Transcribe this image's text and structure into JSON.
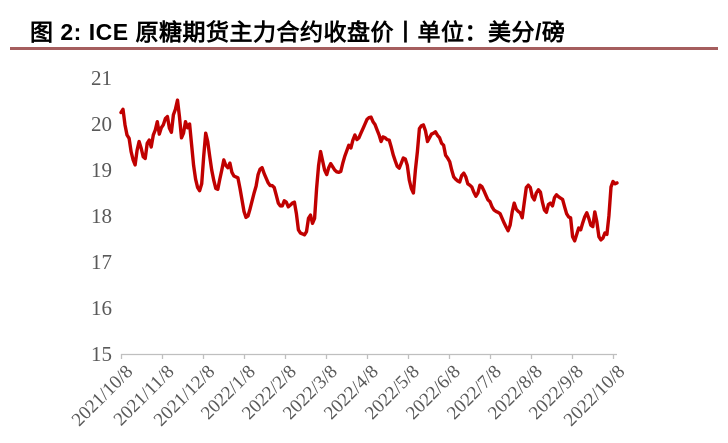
{
  "figure": {
    "caption": "图 2: ICE 原糖期货主力合约收盘价丨单位：美分/磅",
    "underline_color": "#A55E5E"
  },
  "chart_data": {
    "type": "line",
    "title": "ICE 原糖期货主力合约收盘价",
    "unit": "美分/磅",
    "xlabel": "",
    "ylabel": "",
    "ylim": [
      15,
      21
    ],
    "y_ticks": [
      15,
      16,
      17,
      18,
      19,
      20,
      21
    ],
    "x_tick_labels": [
      "2021/10/8",
      "2021/11/8",
      "2021/12/8",
      "2022/1/8",
      "2022/2/8",
      "2022/3/8",
      "2022/4/8",
      "2022/5/8",
      "2022/6/8",
      "2022/7/8",
      "2022/8/8",
      "2022/9/8",
      "2022/10/8"
    ],
    "grid": false,
    "legend_position": "none",
    "axis_color": "#BFBFBF",
    "label_color": "#595959",
    "series": [
      {
        "name": "ICE原糖期货主力合约收盘价",
        "color": "#C00000",
        "values": [
          20.25,
          20.32,
          19.98,
          19.76,
          19.69,
          19.4,
          19.22,
          19.11,
          19.43,
          19.62,
          19.47,
          19.29,
          19.25,
          19.58,
          19.65,
          19.5,
          19.76,
          19.87,
          20.05,
          19.78,
          19.92,
          19.98,
          20.12,
          20.16,
          19.91,
          19.82,
          20.2,
          20.32,
          20.52,
          20.15,
          19.7,
          19.8,
          20.05,
          19.92,
          20.0,
          19.55,
          19.1,
          18.8,
          18.62,
          18.55,
          18.7,
          19.3,
          19.8,
          19.62,
          19.3,
          19.0,
          18.78,
          18.6,
          18.58,
          18.8,
          19.0,
          19.22,
          19.1,
          19.05,
          19.15,
          18.95,
          18.87,
          18.85,
          18.83,
          18.6,
          18.35,
          18.1,
          17.97,
          18.0,
          18.15,
          18.33,
          18.5,
          18.65,
          18.9,
          19.02,
          19.05,
          18.92,
          18.82,
          18.72,
          18.66,
          18.66,
          18.62,
          18.45,
          18.28,
          18.22,
          18.22,
          18.33,
          18.3,
          18.2,
          18.24,
          18.28,
          18.3,
          18.05,
          17.7,
          17.63,
          17.61,
          17.59,
          17.66,
          17.95,
          18.02,
          17.84,
          17.95,
          18.6,
          19.1,
          19.4,
          19.2,
          19.0,
          18.9,
          19.05,
          19.14,
          19.07,
          19.0,
          18.96,
          18.95,
          18.97,
          19.15,
          19.3,
          19.42,
          19.54,
          19.48,
          19.65,
          19.76,
          19.66,
          19.7,
          19.8,
          19.9,
          20.0,
          20.1,
          20.14,
          20.15,
          20.05,
          19.99,
          19.87,
          19.76,
          19.62,
          19.72,
          19.7,
          19.66,
          19.65,
          19.5,
          19.33,
          19.2,
          19.08,
          19.04,
          19.15,
          19.26,
          19.24,
          19.1,
          18.78,
          18.6,
          18.5,
          19.0,
          19.4,
          19.9,
          19.96,
          19.98,
          19.85,
          19.62,
          19.7,
          19.78,
          19.8,
          19.83,
          19.75,
          19.7,
          19.58,
          19.54,
          19.32,
          19.26,
          19.18,
          19.0,
          18.85,
          18.8,
          18.76,
          18.74,
          18.88,
          18.93,
          18.85,
          18.7,
          18.67,
          18.63,
          18.52,
          18.43,
          18.5,
          18.67,
          18.64,
          18.55,
          18.45,
          18.35,
          18.31,
          18.2,
          18.13,
          18.1,
          18.08,
          18.05,
          17.95,
          17.85,
          17.76,
          17.68,
          17.8,
          18.09,
          18.28,
          18.15,
          18.1,
          18.07,
          17.96,
          18.3,
          18.62,
          18.67,
          18.62,
          18.42,
          18.35,
          18.5,
          18.57,
          18.52,
          18.3,
          18.13,
          18.08,
          18.25,
          18.28,
          18.22,
          18.4,
          18.46,
          18.42,
          18.39,
          18.36,
          18.2,
          18.05,
          17.98,
          17.96,
          17.55,
          17.46,
          17.6,
          17.74,
          17.7,
          17.85,
          17.98,
          18.07,
          17.95,
          17.8,
          17.77,
          18.09,
          17.88,
          17.55,
          17.48,
          17.52,
          17.63,
          17.6,
          18.0,
          18.63,
          18.75,
          18.7,
          18.72
        ]
      }
    ]
  }
}
